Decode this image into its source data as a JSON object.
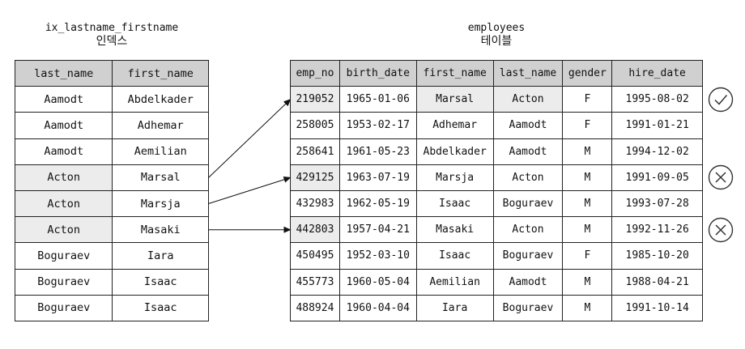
{
  "index": {
    "title": "ix_lastname_firstname",
    "subtitle": "인덱스",
    "columns": [
      "last_name",
      "first_name"
    ],
    "rows": [
      [
        "Aamodt",
        "Abdelkader"
      ],
      [
        "Aamodt",
        "Adhemar"
      ],
      [
        "Aamodt",
        "Aemilian"
      ],
      [
        "Acton",
        "Marsal"
      ],
      [
        "Acton",
        "Marsja"
      ],
      [
        "Acton",
        "Masaki"
      ],
      [
        "Boguraev",
        "Iara"
      ],
      [
        "Boguraev",
        "Isaac"
      ],
      [
        "Boguraev",
        "Isaac"
      ]
    ],
    "highlighted_rows": [
      3,
      4,
      5
    ]
  },
  "table": {
    "title": "employees",
    "subtitle": "테이블",
    "columns": [
      "emp_no",
      "birth_date",
      "first_name",
      "last_name",
      "gender",
      "hire_date"
    ],
    "rows": [
      [
        "219052",
        "1965-01-06",
        "Marsal",
        "Acton",
        "F",
        "1995-08-02"
      ],
      [
        "258005",
        "1953-02-17",
        "Adhemar",
        "Aamodt",
        "F",
        "1991-01-21"
      ],
      [
        "258641",
        "1961-05-23",
        "Abdelkader",
        "Aamodt",
        "M",
        "1994-12-02"
      ],
      [
        "429125",
        "1963-07-19",
        "Marsja",
        "Acton",
        "M",
        "1991-09-05"
      ],
      [
        "432983",
        "1962-05-19",
        "Isaac",
        "Boguraev",
        "M",
        "1993-07-28"
      ],
      [
        "442803",
        "1957-04-21",
        "Masaki",
        "Acton",
        "M",
        "1992-11-26"
      ],
      [
        "450495",
        "1952-03-10",
        "Isaac",
        "Boguraev",
        "F",
        "1985-10-20"
      ],
      [
        "455773",
        "1960-05-04",
        "Aemilian",
        "Aamodt",
        "M",
        "1988-04-21"
      ],
      [
        "488924",
        "1960-04-04",
        "Iara",
        "Boguraev",
        "M",
        "1991-10-14"
      ]
    ],
    "highlighted_cells": [
      [
        0,
        0
      ],
      [
        3,
        0
      ],
      [
        5,
        0
      ],
      [
        0,
        2
      ],
      [
        0,
        3
      ]
    ]
  },
  "links": [
    {
      "from_index_row": 3,
      "to_table_row": 0
    },
    {
      "from_index_row": 4,
      "to_table_row": 3
    },
    {
      "from_index_row": 5,
      "to_table_row": 5
    }
  ],
  "marks": [
    {
      "table_row": 0,
      "symbol": "check-icon"
    },
    {
      "table_row": 3,
      "symbol": "cross-icon"
    },
    {
      "table_row": 5,
      "symbol": "cross-icon"
    }
  ]
}
